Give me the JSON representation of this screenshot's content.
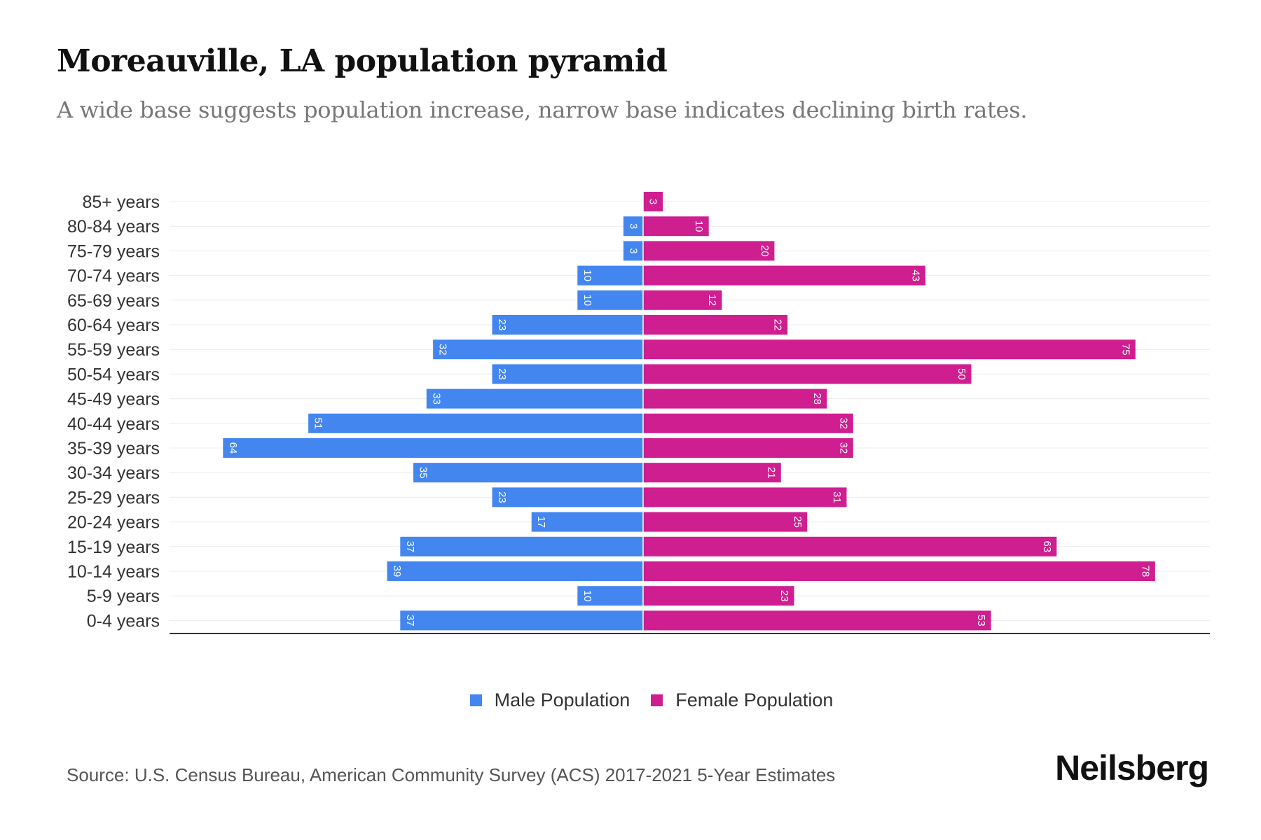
{
  "title": "Moreauville, LA population pyramid",
  "subtitle": "A wide base suggests population increase, narrow base indicates declining birth rates.",
  "source": "Source: U.S. Census Bureau, American Community Survey (ACS) 2017-2021 5-Year Estimates",
  "logo": "Neilsberg",
  "colors": {
    "male": "#4386f0",
    "female": "#cf1e8f"
  },
  "chart_data": {
    "type": "bar",
    "orientation": "horizontal-pyramid",
    "title": "Moreauville, LA population pyramid",
    "categories": [
      "85+ years",
      "80-84 years",
      "75-79 years",
      "70-74 years",
      "65-69 years",
      "60-64 years",
      "55-59 years",
      "50-54 years",
      "45-49 years",
      "40-44 years",
      "35-39 years",
      "30-34 years",
      "25-29 years",
      "20-24 years",
      "15-19 years",
      "10-14 years",
      "5-9 years",
      "0-4 years"
    ],
    "series": [
      {
        "name": "Male Population",
        "values": [
          0,
          3,
          3,
          10,
          10,
          23,
          32,
          23,
          33,
          51,
          64,
          35,
          23,
          17,
          37,
          39,
          10,
          37
        ]
      },
      {
        "name": "Female Population",
        "values": [
          3,
          10,
          20,
          43,
          12,
          22,
          75,
          50,
          28,
          32,
          32,
          21,
          31,
          25,
          63,
          78,
          23,
          53
        ]
      }
    ],
    "legend_position": "bottom-center",
    "grid": true
  }
}
